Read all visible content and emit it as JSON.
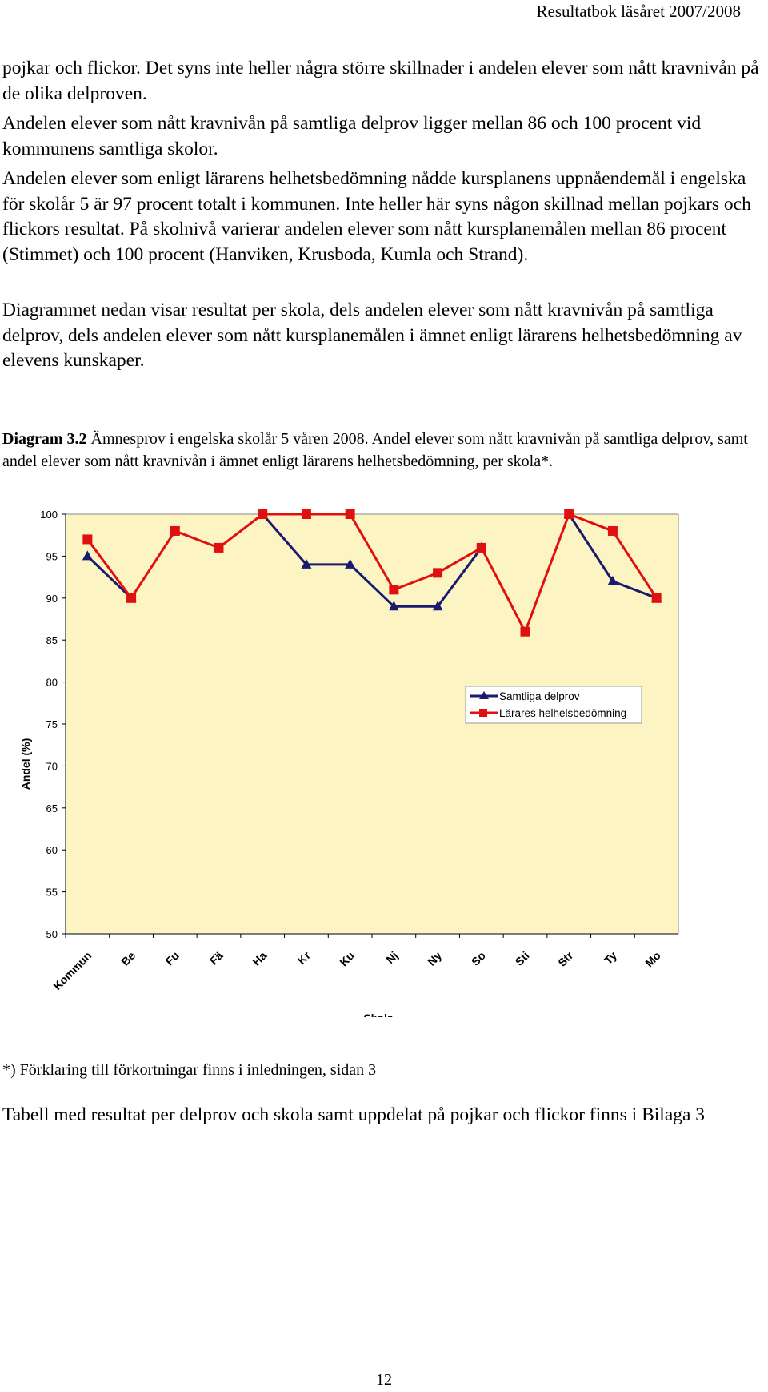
{
  "header": {
    "title": "Resultatbok läsåret 2007/2008"
  },
  "paragraphs": [
    "pojkar och flickor. Det syns inte heller några större skillnader i andelen elever som nått kravnivån på de olika delproven.",
    "Andelen elever som nått kravnivån på samtliga delprov ligger mellan 86 och 100 procent vid kommunens samtliga skolor.",
    "Andelen elever som enligt lärarens helhetsbedömning nådde kursplanens uppnåendemål i engelska för skolår 5 är 97 procent totalt i kommunen. Inte heller här syns någon skillnad mellan pojkars och flickors resultat. På skolnivå varierar andelen elever som nått kursplanemålen mellan 86 procent (Stimmet) och 100 procent (Hanviken, Krusboda, Kumla och Strand).",
    "Diagrammet nedan visar resultat per skola, dels andelen elever som nått kravnivån på samtliga delprov, dels andelen elever som nått kursplanemålen i ämnet enligt lärarens helhetsbedömning av elevens kunskaper."
  ],
  "caption": {
    "label": "Diagram 3.2",
    "text": " Ämnesprov i engelska skolår 5 våren 2008. Andel elever som nått kravnivån på samtliga delprov, samt andel elever som nått kravnivån i ämnet enligt lärarens helhetsbedömning, per skola*."
  },
  "chart_data": {
    "type": "line",
    "categories": [
      "Kommun",
      "Be",
      "Fu",
      "Fä",
      "Ha",
      "Kr",
      "Ku",
      "Nj",
      "Ny",
      "So",
      "Sti",
      "Str",
      "Ty",
      "Mo"
    ],
    "series": [
      {
        "name": "Samtliga delprov",
        "color": "#1a1a6e",
        "marker": "triangle",
        "values": [
          95,
          90,
          null,
          null,
          100,
          94,
          94,
          89,
          89,
          96,
          null,
          100,
          92,
          90
        ]
      },
      {
        "name": "Lärares helhelsbedömning",
        "color": "#e01010",
        "marker": "square",
        "values": [
          97,
          90,
          98,
          96,
          100,
          100,
          100,
          91,
          93,
          96,
          86,
          100,
          98,
          90
        ]
      }
    ],
    "xlabel": "Skola",
    "ylabel": "Andel (%)",
    "ylim": [
      50,
      100
    ],
    "yticks": [
      50,
      55,
      60,
      65,
      70,
      75,
      80,
      85,
      90,
      95,
      100
    ],
    "plot_background": "#fdf4c4",
    "legend_position": "right"
  },
  "note": "*) Förklaring till förkortningar finns i inledningen, sidan 3",
  "footer_text": "Tabell med resultat per delprov och skola samt uppdelat på pojkar och flickor finns i Bilaga 3",
  "page_number": "12"
}
